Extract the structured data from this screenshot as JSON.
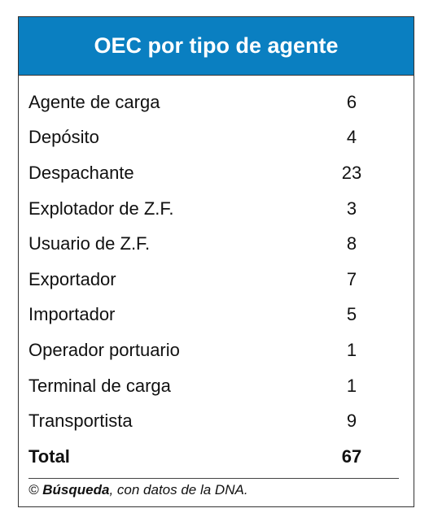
{
  "header": {
    "title": "OEC por tipo de agente"
  },
  "table": {
    "rows": [
      [
        "Agente de carga",
        6
      ],
      [
        "Depósito",
        4
      ],
      [
        "Despachante",
        23
      ],
      [
        "Explotador de Z.F.",
        3
      ],
      [
        "Usuario de Z.F.",
        8
      ],
      [
        "Exportador",
        7
      ],
      [
        "Importador",
        5
      ],
      [
        "Operador portuario",
        1
      ],
      [
        "Terminal de carga",
        1
      ],
      [
        "Transportista",
        9
      ]
    ],
    "total": [
      "Total",
      67
    ]
  },
  "footer": {
    "prefix": "©",
    "source": "Búsqueda",
    "suffix": ", con datos de la DNA."
  }
}
